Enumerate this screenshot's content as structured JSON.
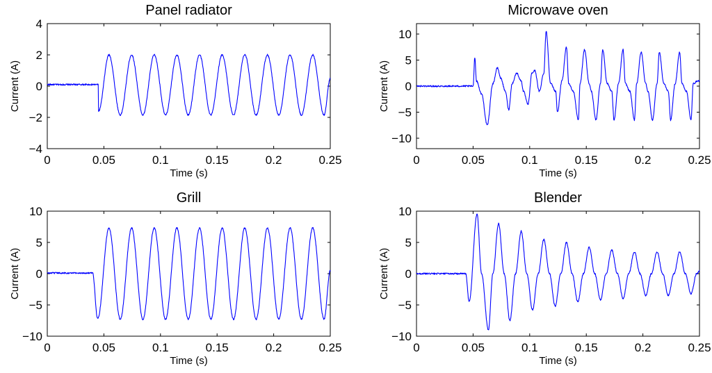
{
  "colors": {
    "line": "#0000ff",
    "axes": "#000000",
    "background": "#ffffff"
  },
  "chart_data": [
    {
      "type": "line",
      "title": "Panel radiator",
      "xlabel": "Time (s)",
      "ylabel": "Current (A)",
      "xlim": [
        0,
        0.25
      ],
      "ylim": [
        -4,
        4
      ],
      "xticks": [
        0,
        0.05,
        0.1,
        0.15,
        0.2,
        0.25
      ],
      "xtick_labels": [
        "0",
        "0.05",
        "0.1",
        "0.15",
        "0.2",
        "0.25"
      ],
      "yticks": [
        -4,
        -2,
        0,
        2,
        4
      ],
      "ytick_labels": [
        "−4",
        "−2",
        "0",
        "2",
        "4"
      ],
      "series": [
        {
          "x": [
            0,
            0.045,
            0.0453,
            0.0545,
            0.0645,
            0.0745,
            0.0845,
            0.0945,
            0.1045,
            0.1145,
            0.1245,
            0.1345,
            0.1445,
            0.1545,
            0.1645,
            0.1745,
            0.1845,
            0.1945,
            0.2045,
            0.2145,
            0.2245,
            0.2345,
            0.2445,
            0.25
          ],
          "y": [
            0.1,
            0.1,
            -1.6,
            2.0,
            -1.85,
            2.0,
            -1.85,
            2.0,
            -1.85,
            2.0,
            -1.85,
            2.0,
            -1.85,
            2.0,
            -1.85,
            2.0,
            -1.85,
            2.0,
            -1.85,
            2.0,
            -1.85,
            2.0,
            -1.85,
            0.5
          ]
        }
      ]
    },
    {
      "type": "line",
      "title": "Microwave oven",
      "xlabel": "Time (s)",
      "ylabel": "Current (A)",
      "xlim": [
        0,
        0.25
      ],
      "ylim": [
        -12,
        12
      ],
      "xticks": [
        0,
        0.05,
        0.1,
        0.15,
        0.2,
        0.25
      ],
      "xtick_labels": [
        "0",
        "0.05",
        "0.1",
        "0.15",
        "0.2",
        "0.25"
      ],
      "yticks": [
        -10,
        -5,
        0,
        5,
        10
      ],
      "ytick_labels": [
        "−10",
        "−5",
        "0",
        "5",
        "10"
      ],
      "series": [
        {
          "x": [
            0,
            0.05,
            0.0515,
            0.053,
            0.0575,
            0.0625,
            0.0675,
            0.0715,
            0.0745,
            0.0785,
            0.0815,
            0.0845,
            0.0885,
            0.0925,
            0.0945,
            0.0985,
            0.102,
            0.1045,
            0.1085,
            0.1125,
            0.1145,
            0.1185,
            0.123,
            0.1245,
            0.1285,
            0.1325,
            0.1345,
            0.1385,
            0.143,
            0.1445,
            0.1485,
            0.1525,
            0.1545,
            0.1585,
            0.1625,
            0.1645,
            0.1685,
            0.1725,
            0.1745,
            0.1785,
            0.1825,
            0.1845,
            0.1885,
            0.1925,
            0.1945,
            0.1985,
            0.2025,
            0.2045,
            0.2085,
            0.2125,
            0.2145,
            0.2185,
            0.2225,
            0.2245,
            0.2285,
            0.2325,
            0.2345,
            0.2385,
            0.2425,
            0.2445,
            0.2485,
            0.25
          ],
          "y": [
            0,
            0,
            5.5,
            1.0,
            -1.5,
            -7.5,
            0.5,
            3.5,
            1.5,
            -1.0,
            -4.5,
            0.5,
            2.5,
            1.0,
            -1.0,
            -3.5,
            2.5,
            3.0,
            -1.0,
            2.5,
            10.5,
            0.5,
            -1.0,
            -5.0,
            1.0,
            7.5,
            0.5,
            -1.0,
            -6.5,
            0.5,
            7.0,
            0.5,
            -1.0,
            -6.5,
            0.5,
            7.0,
            0.5,
            -1.0,
            -6.5,
            0.5,
            7.0,
            0.5,
            -1.0,
            -6.5,
            0.5,
            6.5,
            0.5,
            -1.0,
            -6.5,
            0.5,
            6.5,
            0.5,
            -1.0,
            -6.5,
            0.5,
            6.5,
            0.5,
            -1.0,
            -6.5,
            0.5,
            1.0,
            1.0
          ]
        }
      ]
    },
    {
      "type": "line",
      "title": "Grill",
      "xlabel": "Time (s)",
      "ylabel": "Current (A)",
      "xlim": [
        0,
        0.25
      ],
      "ylim": [
        -10,
        10
      ],
      "xticks": [
        0,
        0.05,
        0.1,
        0.15,
        0.2,
        0.25
      ],
      "xtick_labels": [
        "0",
        "0.05",
        "0.1",
        "0.15",
        "0.2",
        "0.25"
      ],
      "yticks": [
        -10,
        -5,
        0,
        5,
        10
      ],
      "ytick_labels": [
        "−10",
        "−5",
        "0",
        "5",
        "10"
      ],
      "series": [
        {
          "x": [
            0,
            0.04,
            0.0445,
            0.0545,
            0.0645,
            0.0745,
            0.0845,
            0.0945,
            0.1045,
            0.1145,
            0.1245,
            0.1345,
            0.1445,
            0.1545,
            0.1645,
            0.1745,
            0.1845,
            0.1945,
            0.2045,
            0.2145,
            0.2245,
            0.2345,
            0.2445,
            0.25
          ],
          "y": [
            0.1,
            0.1,
            -7.2,
            7.3,
            -7.3,
            7.3,
            -7.3,
            7.3,
            -7.3,
            7.3,
            -7.3,
            7.3,
            -7.3,
            7.3,
            -7.3,
            7.3,
            -7.3,
            7.3,
            -7.3,
            7.3,
            -7.3,
            7.3,
            -7.3,
            0.5
          ]
        }
      ]
    },
    {
      "type": "line",
      "title": "Blender",
      "xlabel": "Time (s)",
      "ylabel": "Current (A)",
      "xlim": [
        0,
        0.25
      ],
      "ylim": [
        -10,
        10
      ],
      "xticks": [
        0,
        0.05,
        0.1,
        0.15,
        0.2,
        0.25
      ],
      "xtick_labels": [
        "0",
        "0.05",
        "0.1",
        "0.15",
        "0.2",
        "0.25"
      ],
      "yticks": [
        -10,
        -5,
        0,
        5,
        10
      ],
      "ytick_labels": [
        "−10",
        "−5",
        "0",
        "5",
        "10"
      ],
      "series": [
        {
          "x": [
            0,
            0.0435,
            0.0465,
            0.0535,
            0.0575,
            0.0635,
            0.0675,
            0.0725,
            0.0775,
            0.0825,
            0.0875,
            0.0925,
            0.0975,
            0.1025,
            0.1075,
            0.1125,
            0.1175,
            0.1225,
            0.1275,
            0.1325,
            0.1375,
            0.1425,
            0.1475,
            0.1525,
            0.1575,
            0.1625,
            0.1675,
            0.1725,
            0.1775,
            0.1825,
            0.1875,
            0.1925,
            0.1975,
            0.2025,
            0.2075,
            0.2125,
            0.2175,
            0.2225,
            0.2275,
            0.2325,
            0.2375,
            0.2425,
            0.2475,
            0.25
          ],
          "y": [
            0,
            0,
            -4.5,
            9.5,
            0,
            -9.0,
            0,
            8.0,
            0,
            -7.5,
            0,
            6.8,
            0,
            -5.8,
            0,
            5.5,
            0,
            -5.2,
            0,
            5.0,
            0,
            -4.5,
            0,
            4.2,
            0,
            -4.2,
            0,
            3.8,
            0,
            -4.0,
            0,
            3.5,
            0,
            -3.5,
            0,
            3.5,
            0,
            -3.5,
            0,
            3.5,
            0,
            -3.2,
            0,
            0.5
          ]
        }
      ]
    }
  ]
}
